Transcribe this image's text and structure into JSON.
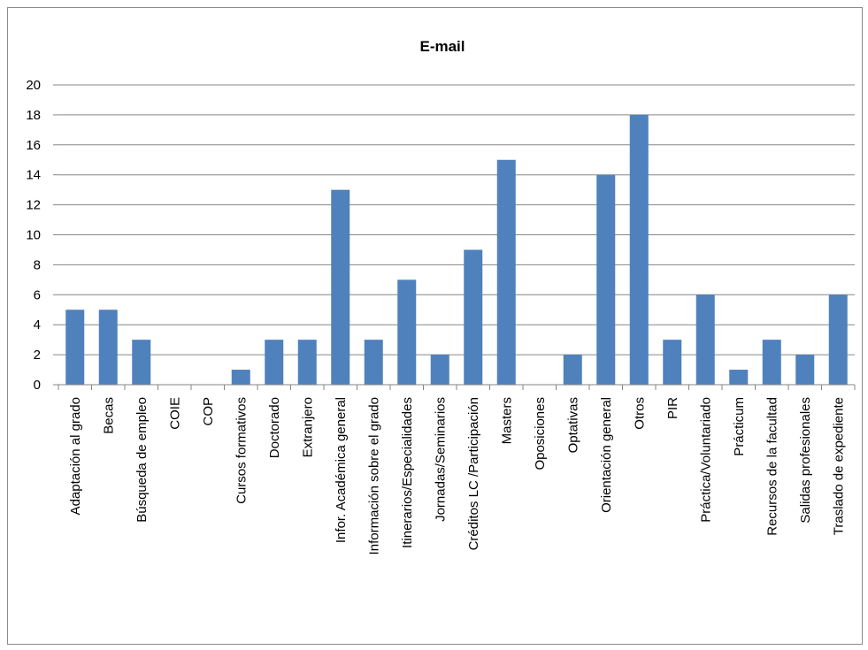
{
  "chart_data": {
    "type": "bar",
    "title": "E-mail",
    "xlabel": "",
    "ylabel": "",
    "ylim": [
      0,
      20
    ],
    "yticks": [
      0,
      2,
      4,
      6,
      8,
      10,
      12,
      14,
      16,
      18,
      20
    ],
    "grid": true,
    "legend": "none",
    "bar_color": "#4f81bd",
    "categories": [
      "Adaptación al grado",
      "Becas",
      "Búsqueda de empleo",
      "COIE",
      "COP",
      "Cursos formativos",
      "Doctorado",
      "Extranjero",
      "Infor. Académica general",
      "Información sobre el grado",
      "Itinerarios/Especialidades",
      "Jornadas/Seminarios",
      "Créditos LC /Participación",
      "Masters",
      "Oposiciones",
      "Optativas",
      "Orientación general",
      "Otros",
      "PIR",
      "Práctica/Voluntariado",
      "Prácticum",
      "Recursos de la facultad",
      "Salidas profesionales",
      "Traslado de expediente"
    ],
    "values": [
      5,
      5,
      3,
      0,
      0,
      1,
      3,
      3,
      13,
      3,
      7,
      2,
      9,
      15,
      0,
      2,
      14,
      18,
      3,
      6,
      1,
      3,
      2,
      6
    ]
  }
}
